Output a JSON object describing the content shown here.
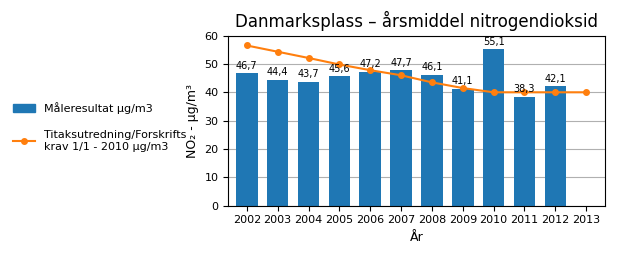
{
  "chart_data": {
    "type": "bar",
    "title": "Danmarksplass – årsmiddel nitrogendioksid",
    "x_label": "År",
    "y_label": "NO₂ - μg/m³",
    "categories": [
      "2002",
      "2003",
      "2004",
      "2005",
      "2006",
      "2007",
      "2008",
      "2009",
      "2010",
      "2011",
      "2012",
      "2013"
    ],
    "series": [
      {
        "name": "Måleresultat μg/m3",
        "type": "bar",
        "values": [
          46.7,
          44.4,
          43.7,
          45.6,
          47.2,
          47.7,
          46.1,
          41.1,
          55.1,
          38.3,
          42.1,
          null
        ],
        "data_labels": true,
        "value_labels": [
          "46,7",
          "44,4",
          "43,7",
          "45,6",
          "47,2",
          "47,7",
          "46,1",
          "41,1",
          "55,1",
          "38,3",
          "42,1",
          null
        ]
      },
      {
        "name": "Titaksutredning/Forskrifts\nkrav 1/1 - 2010 μg/m3",
        "type": "line",
        "marker": "o",
        "values": [
          56.5,
          54.3,
          52.1,
          49.8,
          47.8,
          46.0,
          43.5,
          41.5,
          40.0,
          40.0,
          40.0,
          40.0
        ]
      }
    ],
    "ylim": [
      0,
      60
    ],
    "yticks": [
      0,
      10,
      20,
      30,
      40,
      50,
      60
    ],
    "grid": true,
    "legend": "center left"
  }
}
